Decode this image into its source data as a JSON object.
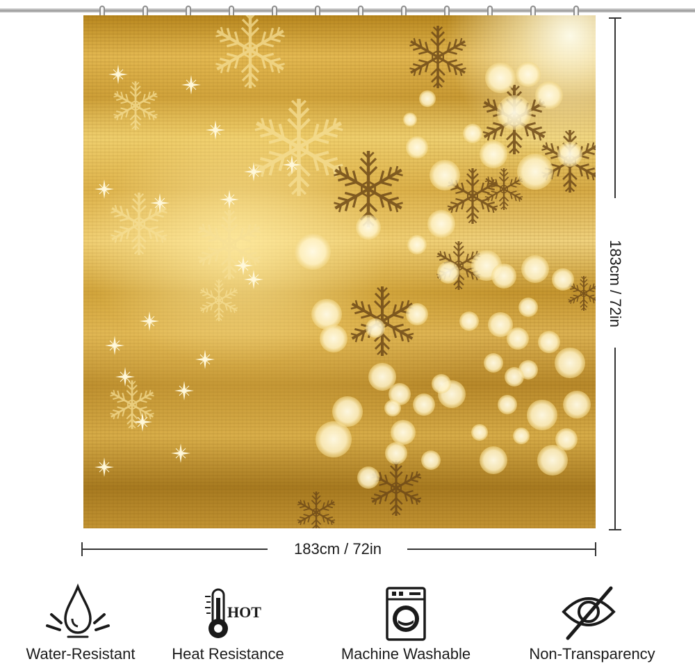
{
  "product": {
    "width_label": "183cm / 72in",
    "height_label": "183cm / 72in",
    "print_colors": {
      "gold": "#d4a845",
      "bright_gold": "#f3dc93",
      "dark_flake": "#6e4a18",
      "bokeh": "#fff6d8"
    }
  },
  "features": [
    {
      "label": "Water-Resistant",
      "icon": "water-drop-icon"
    },
    {
      "label": "Heat Resistance",
      "icon": "thermometer-icon",
      "badge": "HOT"
    },
    {
      "label": "Machine Washable",
      "icon": "washing-machine-icon"
    },
    {
      "label": "Non-Transparency",
      "icon": "crossed-eye-icon"
    }
  ]
}
